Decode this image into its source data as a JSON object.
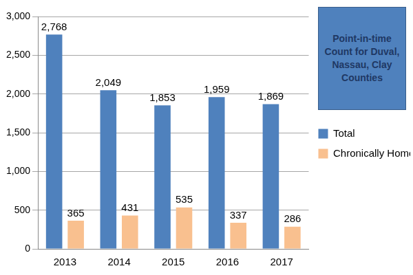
{
  "chart_data": {
    "type": "bar",
    "title": "Point-in-time Count for Duval, Nassau, Clay Counties",
    "categories": [
      "2013",
      "2014",
      "2015",
      "2016",
      "2017"
    ],
    "series": [
      {
        "name": "Total",
        "color": "#4f81bd",
        "values": [
          2768,
          2049,
          1853,
          1959,
          1869
        ],
        "value_labels": [
          "2,768",
          "2,049",
          "1,853",
          "1,959",
          "1,869"
        ]
      },
      {
        "name": "Chronically Homeless",
        "color": "#f9c08f",
        "values": [
          365,
          431,
          535,
          337,
          286
        ]
      }
    ],
    "ylim": [
      0,
      3000
    ],
    "yticks": [
      0,
      500,
      {
        "value": 1000,
        "label": "1,000"
      },
      {
        "value": 1500,
        "label": "1,500"
      },
      {
        "value": 2000,
        "label": "2,000"
      },
      {
        "value": 2500,
        "label": "2,500"
      },
      {
        "value": 3000,
        "label": "3,000"
      }
    ],
    "grid": true,
    "legend": "right",
    "data_labels": true
  }
}
